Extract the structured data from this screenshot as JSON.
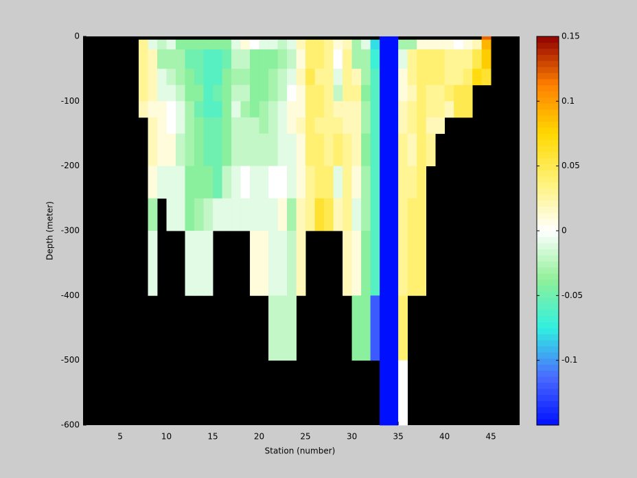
{
  "chart_data": {
    "type": "heatmap",
    "x_label": "Station (number)",
    "y_label": "Depth (meter)",
    "x_edges": [
      7,
      8,
      9,
      10,
      11,
      12,
      13,
      14,
      15,
      16,
      17,
      18,
      19,
      20,
      21,
      22,
      23,
      24,
      25,
      26,
      27,
      28,
      29,
      30,
      31,
      32,
      33,
      34,
      35,
      36,
      37,
      38,
      39,
      40,
      41,
      42,
      43,
      44,
      45
    ],
    "y_edges": [
      0,
      -5,
      -20,
      -50,
      -75,
      -100,
      -125,
      -150,
      -200,
      -250,
      -300,
      -400,
      -500,
      -600
    ],
    "values": [
      [
        null,
        null,
        null,
        null,
        null,
        null,
        null,
        null,
        null,
        null,
        null,
        null,
        null,
        null,
        null,
        null,
        null,
        null,
        null,
        null,
        null,
        null,
        null,
        null,
        null,
        null,
        -0.15,
        -0.15,
        null,
        null,
        null,
        null,
        null,
        null,
        null,
        null,
        null,
        0.12
      ],
      [
        0.03,
        -0.01,
        -0.02,
        -0.01,
        -0.04,
        -0.04,
        -0.04,
        -0.04,
        -0.04,
        -0.04,
        -0.01,
        0.01,
        0,
        -0.01,
        -0.01,
        -0.02,
        -0.01,
        0.02,
        0.04,
        0.04,
        0.03,
        0.01,
        0.02,
        -0.03,
        -0.01,
        -0.08,
        -0.15,
        -0.15,
        -0.03,
        -0.03,
        0.01,
        0.01,
        0.01,
        0.01,
        0,
        0.01,
        0.02,
        0.09
      ],
      [
        0.03,
        0.02,
        -0.03,
        -0.03,
        -0.03,
        -0.05,
        -0.05,
        -0.06,
        -0.06,
        -0.05,
        -0.02,
        -0.02,
        -0.04,
        -0.04,
        -0.04,
        -0.03,
        -0.02,
        0.01,
        0.04,
        0.04,
        0.03,
        0,
        0.03,
        -0.03,
        -0.03,
        -0.07,
        -0.15,
        -0.15,
        -0.01,
        0.03,
        0.04,
        0.04,
        0.04,
        0.03,
        0.03,
        0.03,
        0.05,
        0.08
      ],
      [
        0.03,
        0.02,
        -0.01,
        -0.02,
        -0.03,
        -0.04,
        -0.05,
        -0.06,
        -0.06,
        -0.04,
        -0.03,
        -0.03,
        -0.04,
        -0.04,
        -0.03,
        -0.02,
        -0.01,
        0.02,
        0.05,
        0.03,
        0.03,
        -0.01,
        0.03,
        0.02,
        -0.03,
        -0.06,
        -0.15,
        -0.15,
        0.01,
        0.03,
        0.04,
        0.04,
        0.04,
        0.03,
        0.03,
        0.04,
        0.07,
        0.06
      ],
      [
        0.03,
        0.02,
        -0.01,
        -0.01,
        -0.02,
        -0.04,
        -0.04,
        -0.06,
        -0.05,
        -0.04,
        -0.02,
        -0.02,
        -0.04,
        -0.04,
        -0.03,
        -0.02,
        0,
        0.01,
        0.04,
        0.04,
        0.03,
        -0.02,
        0.03,
        0.03,
        -0.04,
        -0.06,
        -0.15,
        -0.15,
        0.01,
        0.02,
        0.04,
        0.03,
        0.03,
        0.04,
        0.05,
        0.05,
        null,
        null
      ],
      [
        0.02,
        0.01,
        0.01,
        0,
        -0.01,
        -0.03,
        -0.05,
        -0.06,
        -0.06,
        -0.04,
        -0.01,
        -0.03,
        -0.04,
        -0.03,
        -0.02,
        -0.01,
        0.01,
        0.01,
        0.04,
        0.04,
        0.03,
        0.02,
        0.02,
        0.02,
        -0.03,
        -0.06,
        -0.15,
        -0.15,
        0.02,
        0.03,
        0.04,
        0.03,
        0.03,
        0.02,
        0.05,
        0.05,
        null,
        null
      ],
      [
        null,
        0.02,
        0.01,
        0,
        -0.01,
        -0.03,
        -0.04,
        -0.05,
        -0.05,
        -0.04,
        -0.02,
        -0.02,
        -0.02,
        -0.03,
        -0.02,
        -0.01,
        0.01,
        0.02,
        0.04,
        0.03,
        0.03,
        0.03,
        0.02,
        0.02,
        -0.03,
        -0.06,
        -0.15,
        -0.15,
        0.02,
        0.03,
        0.04,
        0.02,
        0.02,
        null,
        null,
        null,
        null,
        null
      ],
      [
        null,
        0.02,
        0.01,
        0.01,
        -0.02,
        -0.03,
        -0.04,
        -0.05,
        -0.05,
        -0.04,
        -0.02,
        -0.02,
        -0.02,
        -0.02,
        -0.02,
        -0.01,
        -0.01,
        0.01,
        0.04,
        0.04,
        0.03,
        0.04,
        0.03,
        0.02,
        -0.04,
        -0.06,
        -0.15,
        -0.15,
        0.03,
        0.02,
        0.04,
        0.03,
        null,
        null,
        null,
        null,
        null,
        null
      ],
      [
        null,
        0.01,
        -0.01,
        -0.01,
        -0.01,
        -0.04,
        -0.04,
        -0.04,
        -0.05,
        -0.02,
        -0.01,
        0,
        -0.01,
        -0.01,
        0,
        0,
        -0.01,
        0.01,
        0.03,
        0.04,
        0.04,
        -0.01,
        0.03,
        0.01,
        -0.03,
        -0.06,
        -0.15,
        -0.15,
        0.03,
        0.03,
        0.04,
        null,
        null,
        null,
        null,
        null,
        null,
        null
      ],
      [
        null,
        -0.03,
        null,
        -0.01,
        -0.01,
        -0.04,
        -0.03,
        -0.02,
        -0.01,
        -0.01,
        -0.01,
        -0.01,
        -0.01,
        -0.01,
        -0.01,
        0.01,
        -0.03,
        0.02,
        0.03,
        0.06,
        0.05,
        0.02,
        0.03,
        -0.01,
        -0.03,
        -0.06,
        -0.15,
        -0.15,
        0.03,
        0.04,
        0.04,
        null,
        null,
        null,
        null,
        null,
        null,
        null
      ],
      [
        null,
        -0.01,
        null,
        null,
        null,
        -0.01,
        -0.01,
        -0.01,
        null,
        null,
        null,
        null,
        0.01,
        0.01,
        -0.01,
        -0.01,
        -0.02,
        0.02,
        null,
        null,
        null,
        null,
        0.02,
        0.01,
        -0.04,
        -0.06,
        -0.15,
        -0.15,
        0.03,
        0.04,
        0.04,
        null,
        null,
        null,
        null,
        null,
        null,
        null
      ],
      [
        null,
        null,
        null,
        null,
        null,
        null,
        null,
        null,
        null,
        null,
        null,
        null,
        null,
        null,
        -0.02,
        -0.02,
        -0.02,
        null,
        null,
        null,
        null,
        null,
        null,
        -0.04,
        -0.04,
        -0.12,
        -0.15,
        -0.15,
        0.04,
        null,
        null,
        null,
        null,
        null,
        null,
        null,
        null,
        null
      ],
      [
        null,
        null,
        null,
        null,
        null,
        null,
        null,
        null,
        null,
        null,
        null,
        null,
        null,
        null,
        null,
        null,
        null,
        null,
        null,
        null,
        null,
        null,
        null,
        null,
        null,
        null,
        -0.15,
        -0.15,
        0,
        null,
        null,
        null,
        null,
        null,
        null,
        null,
        null,
        null
      ]
    ],
    "xlim": [
      1,
      48.1
    ],
    "xticks": [
      5,
      10,
      15,
      20,
      25,
      30,
      35,
      40,
      45
    ],
    "ylim": [
      -600,
      0
    ],
    "yticks": [
      0,
      -100,
      -200,
      -300,
      -400,
      -500,
      -600
    ],
    "clim": [
      -0.15,
      0.15
    ],
    "cticks": [
      0.15,
      0.1,
      0.05,
      0,
      -0.05,
      -0.1
    ],
    "colormap": [
      "#0010ff",
      "#4a6cff",
      "#30f0e0",
      "#90f098",
      "#ffffff",
      "#fff27a",
      "#ffd800",
      "#ff8000",
      "#900000"
    ],
    "background": "#000000"
  }
}
